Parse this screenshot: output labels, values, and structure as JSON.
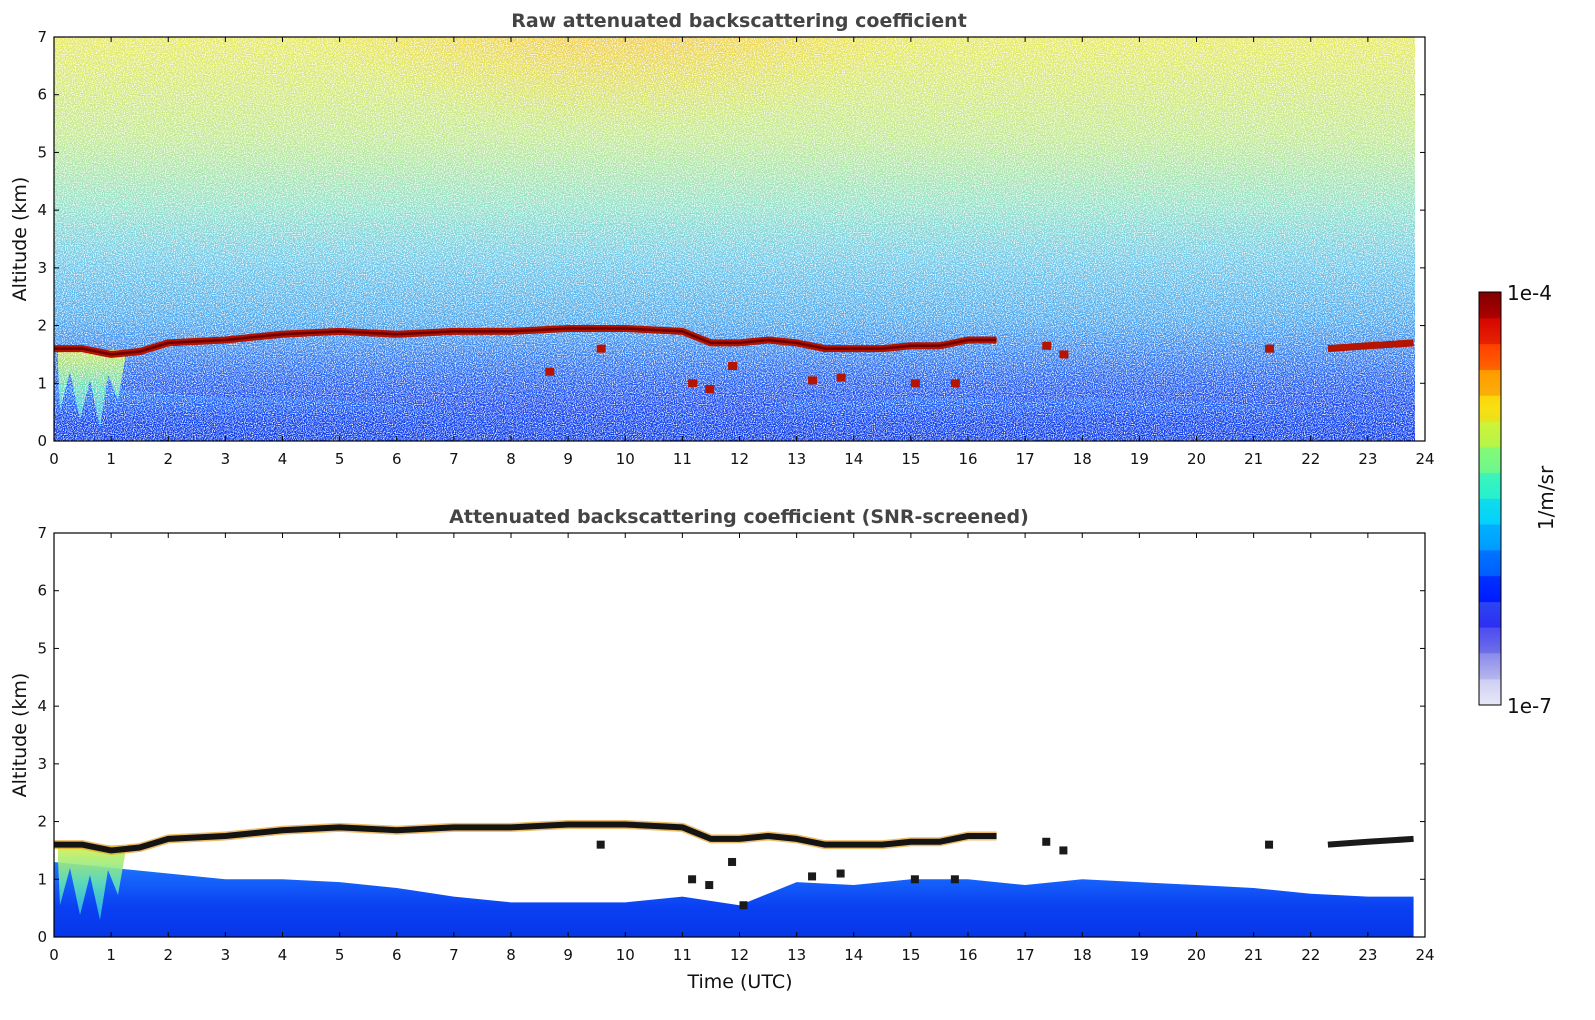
{
  "chart_data": [
    {
      "type": "heatmap",
      "title": "Raw attenuated backscattering coefficient",
      "xlabel": "",
      "ylabel": "Altitude (km)",
      "xlim": [
        0,
        24
      ],
      "ylim": [
        0,
        7
      ],
      "xticks": [
        "0",
        "1",
        "2",
        "3",
        "4",
        "5",
        "6",
        "7",
        "8",
        "9",
        "10",
        "11",
        "12",
        "13",
        "14",
        "15",
        "16",
        "17",
        "18",
        "19",
        "20",
        "21",
        "22",
        "23",
        "24"
      ],
      "yticks": [
        "0",
        "1",
        "2",
        "3",
        "4",
        "5",
        "6",
        "7"
      ],
      "cloud_base_km": {
        "x": [
          0,
          0.5,
          1,
          1.5,
          2,
          3,
          4,
          5,
          6,
          7,
          8,
          9,
          10,
          11,
          11.5,
          12,
          12.5,
          13,
          13.5,
          14,
          14.5,
          15,
          15.5,
          16,
          16.5
        ],
        "y": [
          1.6,
          1.6,
          1.5,
          1.55,
          1.7,
          1.75,
          1.85,
          1.9,
          1.85,
          1.9,
          1.9,
          1.95,
          1.95,
          1.9,
          1.7,
          1.7,
          1.75,
          1.7,
          1.6,
          1.6,
          1.6,
          1.65,
          1.65,
          1.75,
          1.75
        ]
      },
      "cloud_base_late_km": {
        "x": [
          22.3,
          23,
          23.8
        ],
        "y": [
          1.6,
          1.65,
          1.7
        ]
      },
      "data_end_hour": 23.8
    },
    {
      "type": "heatmap",
      "title": "Attenuated backscattering coefficient (SNR-screened)",
      "xlabel": "Time (UTC)",
      "ylabel": "Altitude (km)",
      "xlim": [
        0,
        24
      ],
      "ylim": [
        0,
        7
      ],
      "xticks": [
        "0",
        "1",
        "2",
        "3",
        "4",
        "5",
        "6",
        "7",
        "8",
        "9",
        "10",
        "11",
        "12",
        "13",
        "14",
        "15",
        "16",
        "17",
        "18",
        "19",
        "20",
        "21",
        "22",
        "23",
        "24"
      ],
      "yticks": [
        "0",
        "1",
        "2",
        "3",
        "4",
        "5",
        "6",
        "7"
      ],
      "boundary_layer_top_km": {
        "x": [
          0,
          1,
          2,
          3,
          4,
          5,
          6,
          7,
          8,
          9,
          10,
          11,
          12,
          13,
          14,
          15,
          16,
          17,
          18,
          19,
          20,
          21,
          22,
          23,
          23.8
        ],
        "y": [
          1.3,
          1.2,
          1.1,
          1.0,
          1.0,
          0.95,
          0.85,
          0.7,
          0.6,
          0.6,
          0.6,
          0.7,
          0.55,
          0.95,
          0.9,
          1.0,
          1.0,
          0.9,
          1.0,
          0.95,
          0.9,
          0.85,
          0.75,
          0.7,
          0.7
        ]
      }
    }
  ],
  "colorbar": {
    "label": "1/m/sr",
    "max_label": "1e-4",
    "min_label": "1e-7",
    "scale": "log",
    "colors": [
      "#e8e8f8",
      "#c0c0ee",
      "#9090e6",
      "#5050e8",
      "#0000ff",
      "#0050ff",
      "#0096ff",
      "#00d2ff",
      "#2cf2c8",
      "#7efa7e",
      "#d2f232",
      "#ffd200",
      "#ff8c00",
      "#ff3200",
      "#d20000",
      "#800000"
    ]
  }
}
